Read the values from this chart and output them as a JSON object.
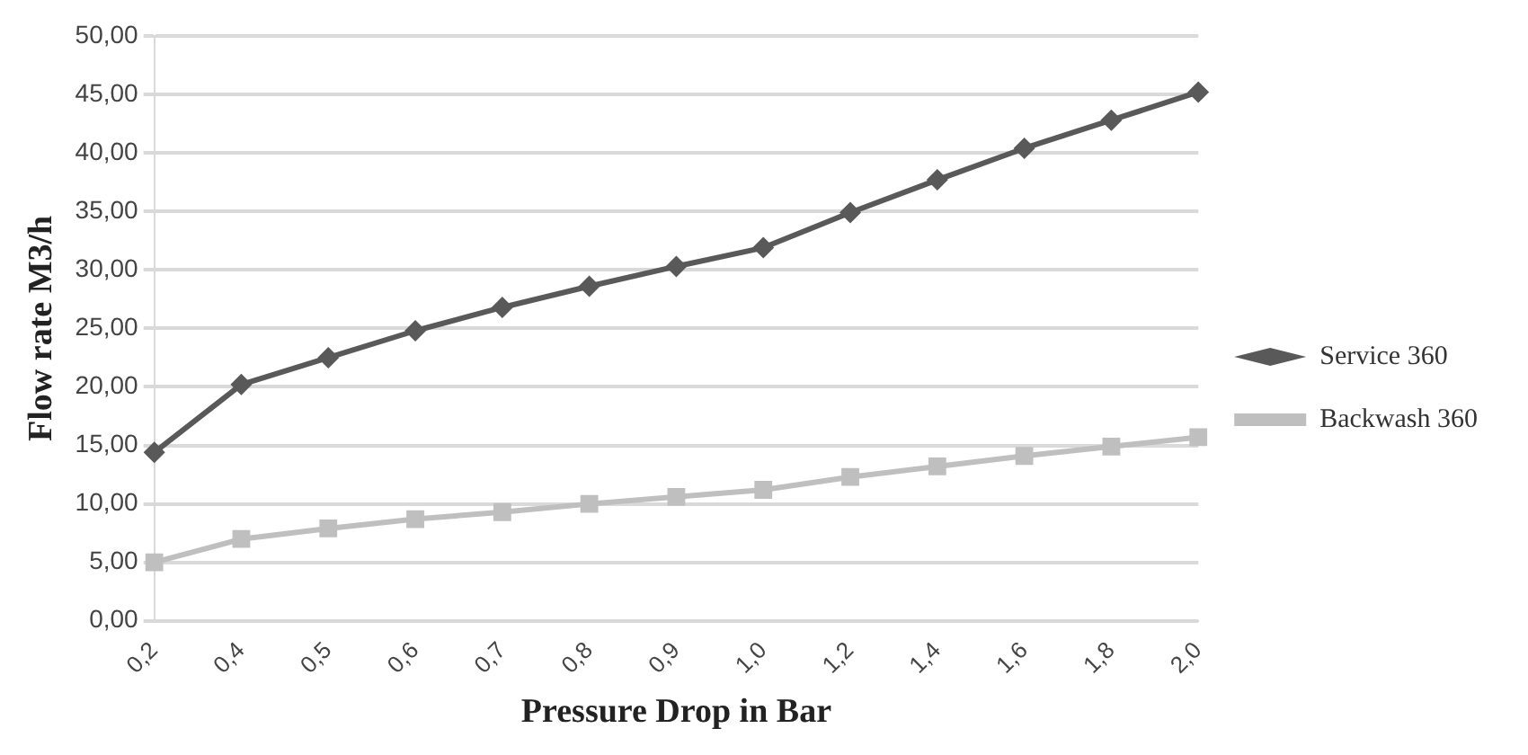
{
  "chart_data": {
    "type": "line",
    "xlabel": "Pressure Drop in Bar",
    "ylabel": "Flow rate M3/h",
    "categories": [
      "0,2",
      "0,4",
      "0,5",
      "0,6",
      "0,7",
      "0,8",
      "0,9",
      "1,0",
      "1,2",
      "1,4",
      "1,6",
      "1,8",
      "2,0"
    ],
    "series": [
      {
        "name": "Service 360",
        "color": "#595959",
        "marker": "diamond",
        "values": [
          14.4,
          20.2,
          22.5,
          24.8,
          26.8,
          28.6,
          30.3,
          31.9,
          34.9,
          37.7,
          40.4,
          42.8,
          45.2
        ]
      },
      {
        "name": "Backwash 360",
        "color": "#bfbfbf",
        "marker": "square",
        "values": [
          5.0,
          7.0,
          7.9,
          8.7,
          9.3,
          10.0,
          10.6,
          11.2,
          12.3,
          13.2,
          14.1,
          14.9,
          15.7
        ]
      }
    ],
    "ylim": [
      0,
      50
    ],
    "yticks": [
      {
        "value": 0,
        "label": "0,00"
      },
      {
        "value": 5,
        "label": "5,00"
      },
      {
        "value": 10,
        "label": "10,00"
      },
      {
        "value": 15,
        "label": "15,00"
      },
      {
        "value": 20,
        "label": "20,00"
      },
      {
        "value": 25,
        "label": "25,00"
      },
      {
        "value": 30,
        "label": "30,00"
      },
      {
        "value": 35,
        "label": "35,00"
      },
      {
        "value": 40,
        "label": "40,00"
      },
      {
        "value": 45,
        "label": "45,00"
      },
      {
        "value": 50,
        "label": "50,00"
      }
    ],
    "grid": "y",
    "legend": "right",
    "line_style": "solid"
  }
}
